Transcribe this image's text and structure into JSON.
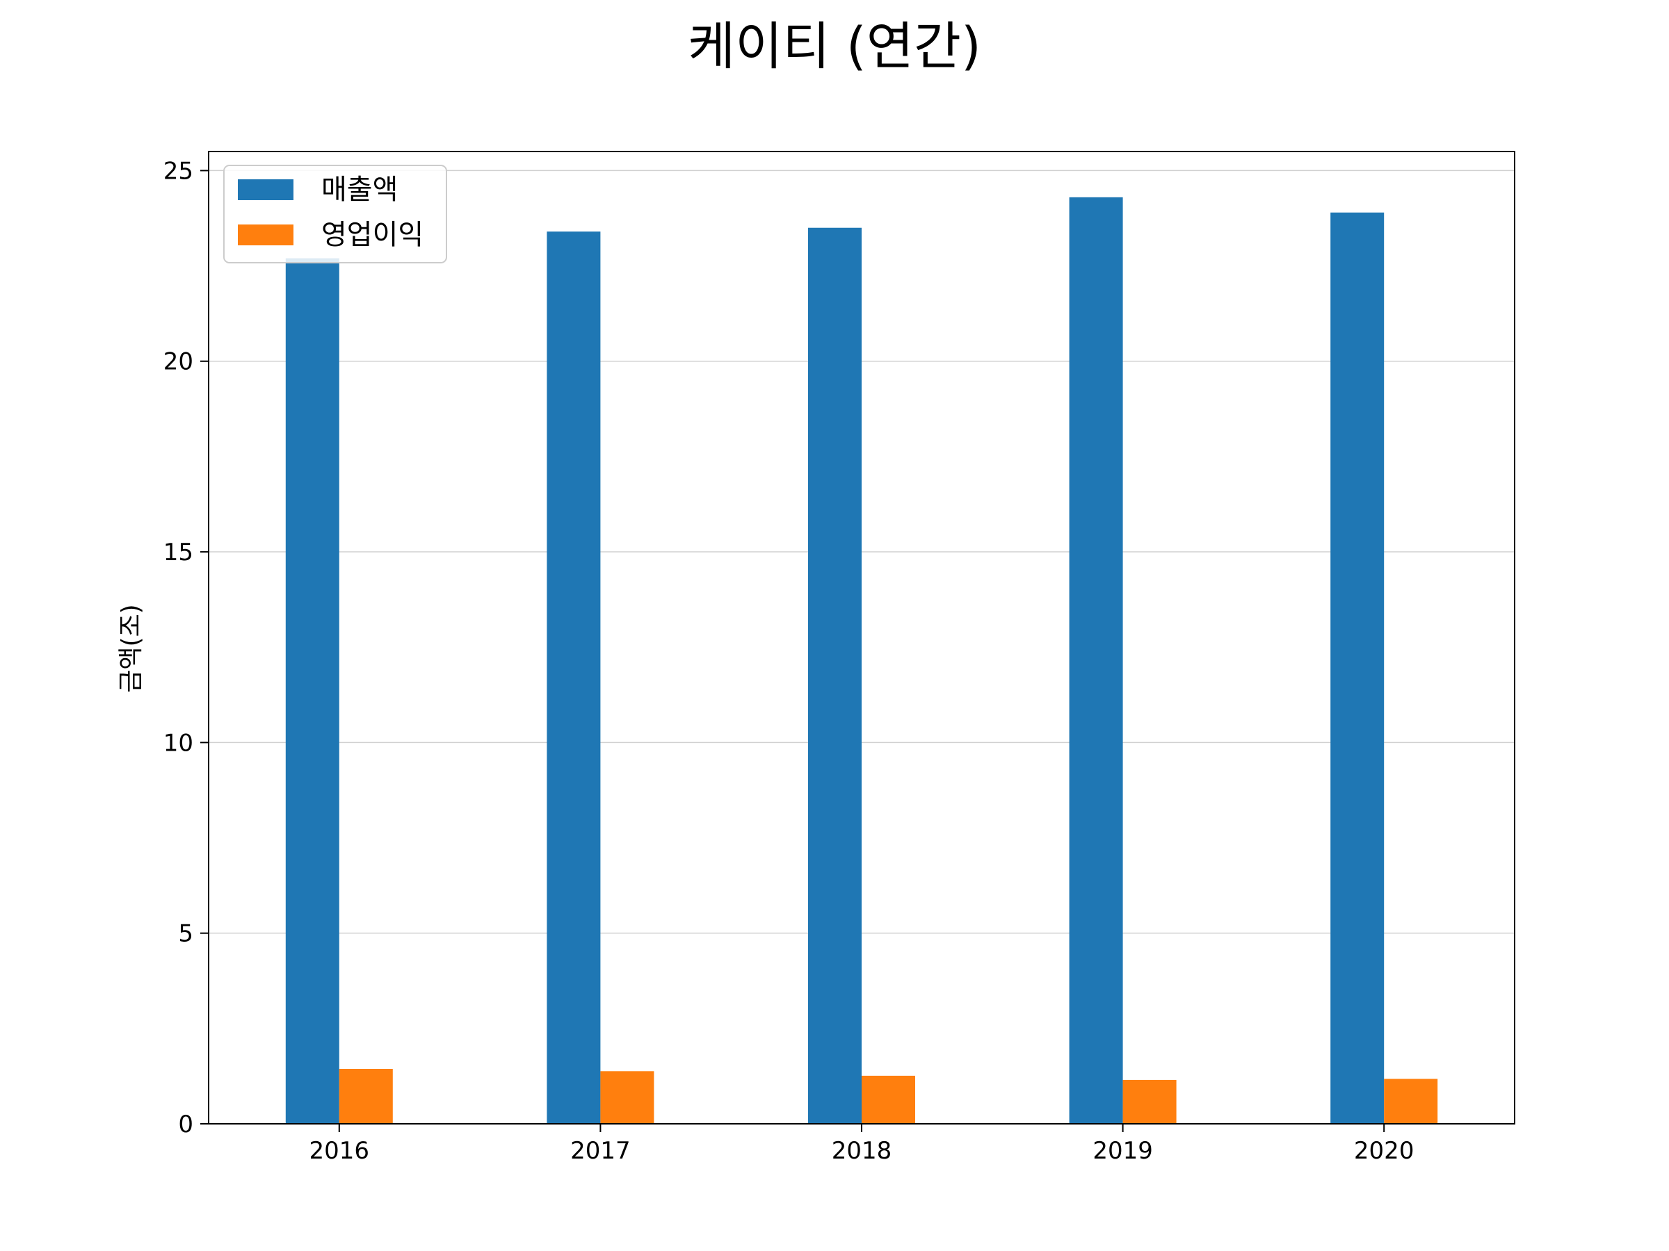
{
  "chart_data": {
    "type": "bar",
    "title": "케이티 (연간)",
    "xlabel": "",
    "ylabel": "금액(조)",
    "categories": [
      "2016",
      "2017",
      "2018",
      "2019",
      "2020"
    ],
    "series": [
      {
        "name": "매출액",
        "color": "#1f77b4",
        "values": [
          22.7,
          23.4,
          23.5,
          24.3,
          23.9
        ]
      },
      {
        "name": "영업이익",
        "color": "#ff7f0e",
        "values": [
          1.44,
          1.38,
          1.26,
          1.15,
          1.18
        ]
      }
    ],
    "ylim": [
      0,
      25.5
    ],
    "yticks": [
      0,
      5,
      10,
      15,
      20,
      25
    ],
    "grid": "y",
    "legend_position": "top-left"
  }
}
